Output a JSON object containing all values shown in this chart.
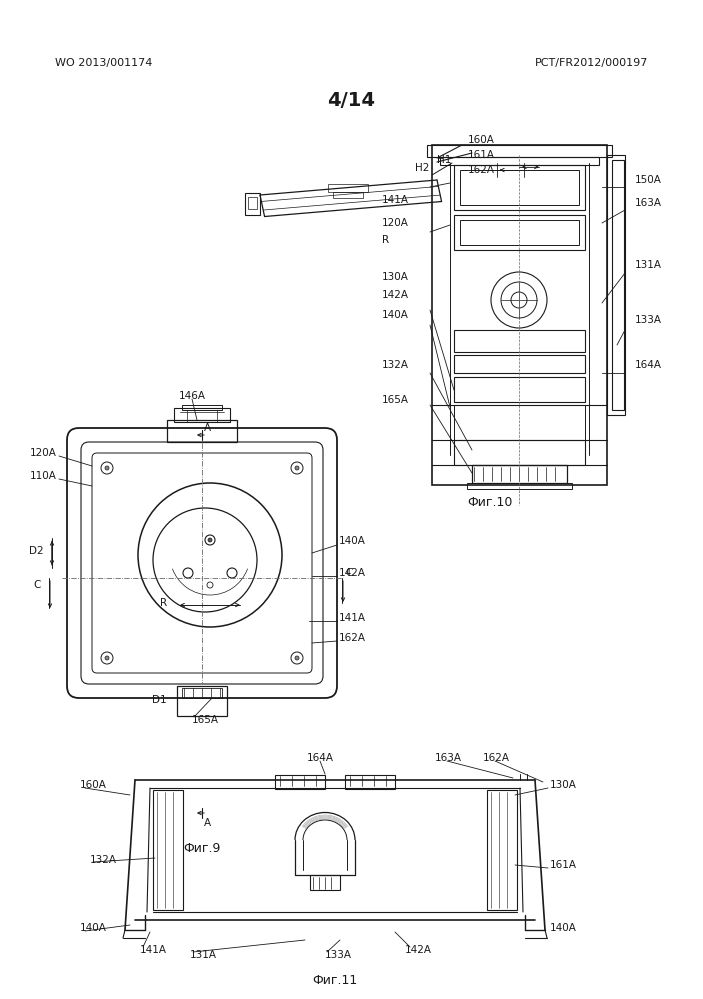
{
  "page_width": 7.03,
  "page_height": 9.99,
  "dpi": 100,
  "bg_color": "#ffffff",
  "header_left": "WO 2013/001174",
  "header_right": "PCT/FR2012/000197",
  "page_number": "4/14",
  "fig9_caption": "Фиг.9",
  "fig10_caption": "Фиг.10",
  "fig11_caption": "Фиг.11",
  "line_color": "#1a1a1a",
  "text_color": "#1a1a1a",
  "header_fontsize": 8,
  "label_fontsize": 7.5,
  "caption_fontsize": 9,
  "page_num_fontsize": 14
}
